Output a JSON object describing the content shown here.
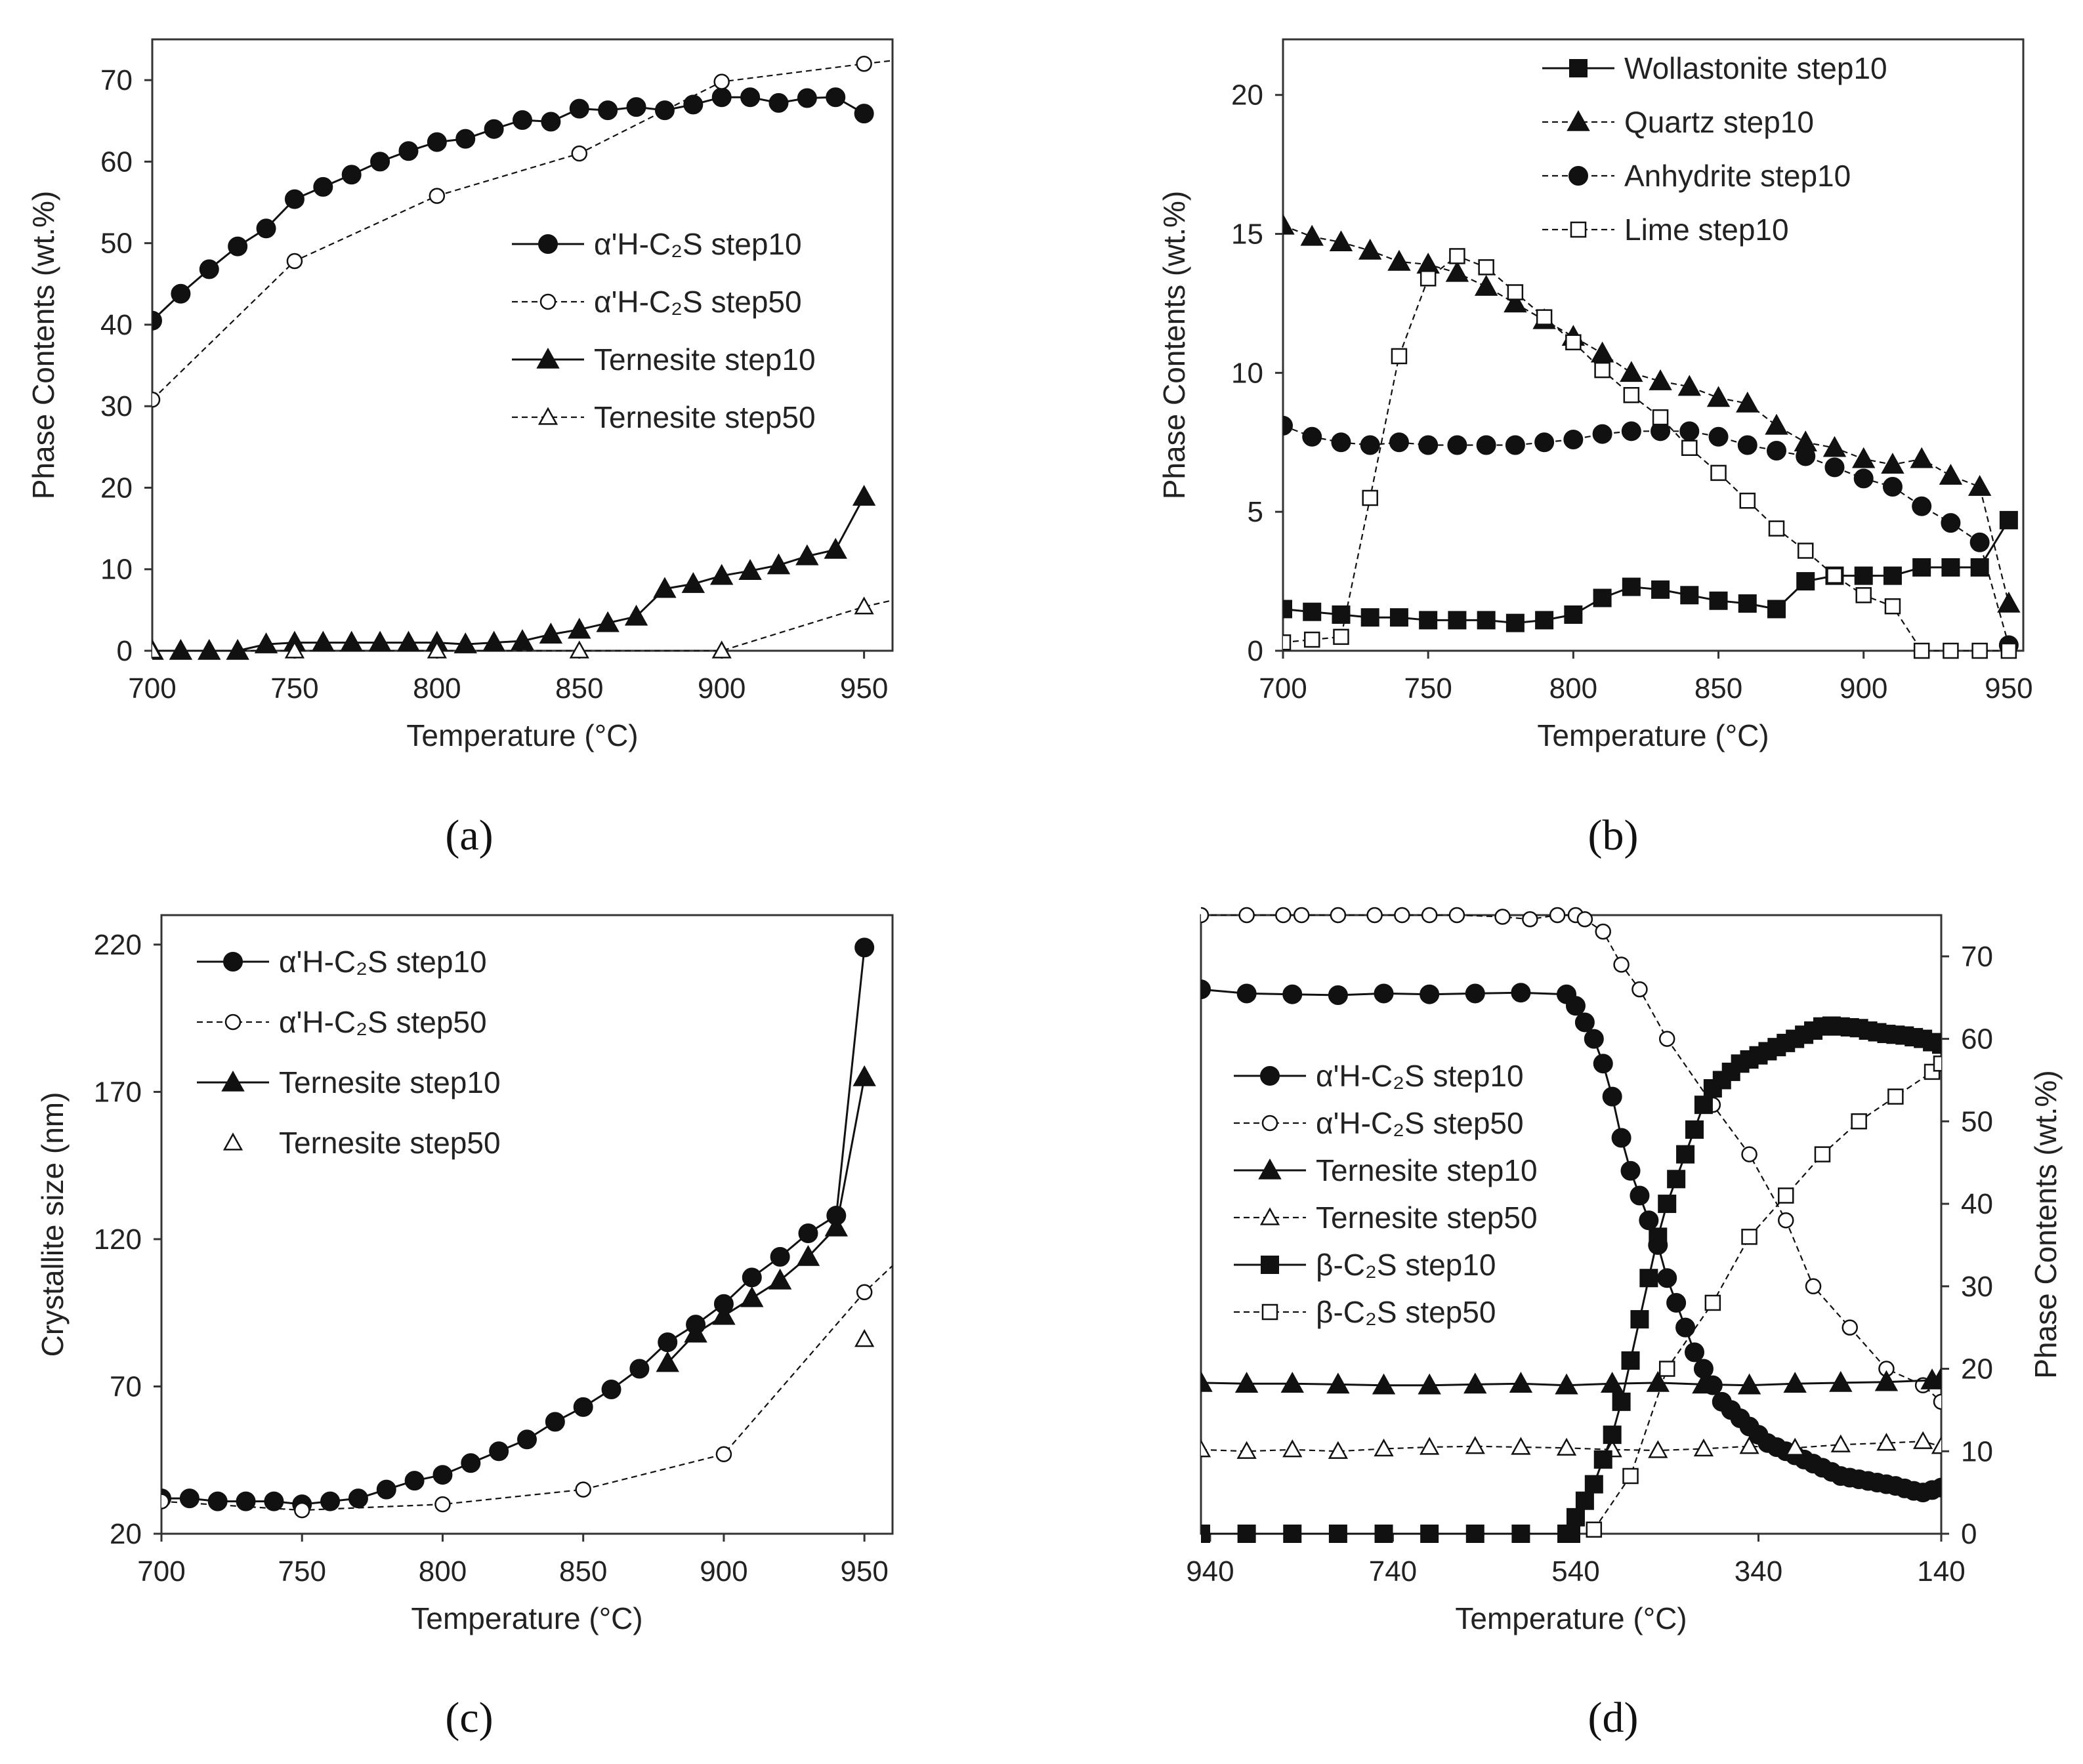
{
  "colors": {
    "ink": "#111111",
    "axis": "#333333",
    "background": "#ffffff"
  },
  "chart_data": [
    {
      "id": "a",
      "panel_label": "(a)",
      "type": "line",
      "xlabel": "Temperature (°C)",
      "ylabel": "Phase Contents (wt.%)",
      "xlim": [
        700,
        960
      ],
      "ylim": [
        0,
        75
      ],
      "xticks": [
        700,
        750,
        800,
        850,
        900,
        950
      ],
      "yticks": [
        0,
        10,
        20,
        30,
        40,
        50,
        60,
        70
      ],
      "legend_position": "center-right",
      "series": [
        {
          "name": "α'H-C₂S step10",
          "marker": "circle",
          "filled": true,
          "dash": false,
          "x": [
            700,
            710,
            720,
            730,
            740,
            750,
            760,
            770,
            780,
            790,
            800,
            810,
            820,
            830,
            840,
            850,
            860,
            870,
            880,
            890,
            900,
            910,
            920,
            930,
            940,
            950
          ],
          "y": [
            40.5,
            43.8,
            46.8,
            49.6,
            51.8,
            55.4,
            56.9,
            58.4,
            60.0,
            61.3,
            62.4,
            62.8,
            64.0,
            65.1,
            64.9,
            66.5,
            66.3,
            66.7,
            66.3,
            67.0,
            67.9,
            67.9,
            67.2,
            67.8,
            67.9,
            65.9
          ]
        },
        {
          "name": "α'H-C₂S step50",
          "marker": "circle",
          "filled": false,
          "dash": true,
          "x": [
            700,
            750,
            800,
            850,
            900,
            950,
            960
          ],
          "y": [
            30.8,
            47.8,
            55.8,
            61.0,
            69.8,
            72.0,
            72.4
          ],
          "marker_count": 6
        },
        {
          "name": "Ternesite step10",
          "marker": "triangle",
          "filled": true,
          "dash": false,
          "x": [
            700,
            710,
            720,
            730,
            740,
            750,
            760,
            770,
            780,
            790,
            800,
            810,
            820,
            830,
            840,
            850,
            860,
            870,
            880,
            890,
            900,
            910,
            920,
            930,
            940,
            950
          ],
          "y": [
            0,
            0,
            0,
            0,
            0.8,
            1.0,
            1.0,
            1.0,
            1.0,
            1.0,
            1.0,
            0.8,
            1.0,
            1.2,
            2.0,
            2.6,
            3.4,
            4.2,
            7.6,
            8.2,
            9.2,
            9.8,
            10.5,
            11.6,
            12.4,
            18.9
          ]
        },
        {
          "name": "Ternesite step50",
          "marker": "triangle",
          "filled": false,
          "dash": true,
          "x": [
            700,
            750,
            800,
            850,
            900,
            950,
            960
          ],
          "y": [
            0,
            0,
            0,
            0,
            0,
            5.4,
            6.2
          ],
          "marker_count": 6
        }
      ]
    },
    {
      "id": "b",
      "panel_label": "(b)",
      "type": "line",
      "xlabel": "Temperature (°C)",
      "ylabel": "Phase Contents (wt.%)",
      "xlim": [
        700,
        955
      ],
      "ylim": [
        0,
        22
      ],
      "xticks": [
        700,
        750,
        800,
        850,
        900,
        950
      ],
      "yticks": [
        0,
        5,
        10,
        15,
        20
      ],
      "legend_position": "top-right",
      "series": [
        {
          "name": "Wollastonite step10",
          "marker": "square",
          "filled": true,
          "dash": false,
          "x": [
            700,
            710,
            720,
            730,
            740,
            750,
            760,
            770,
            780,
            790,
            800,
            810,
            820,
            830,
            840,
            850,
            860,
            870,
            880,
            890,
            900,
            910,
            920,
            930,
            940,
            950
          ],
          "y": [
            1.5,
            1.4,
            1.3,
            1.2,
            1.2,
            1.1,
            1.1,
            1.1,
            1.0,
            1.1,
            1.3,
            1.9,
            2.3,
            2.2,
            2.0,
            1.8,
            1.7,
            1.5,
            2.5,
            2.7,
            2.7,
            2.7,
            3.0,
            3.0,
            3.0,
            4.7
          ]
        },
        {
          "name": "Quartz step10",
          "marker": "triangle",
          "filled": true,
          "dash": true,
          "x": [
            700,
            710,
            720,
            730,
            740,
            750,
            760,
            770,
            780,
            790,
            800,
            810,
            820,
            830,
            840,
            850,
            860,
            870,
            880,
            890,
            900,
            910,
            920,
            930,
            940,
            950
          ],
          "y": [
            15.3,
            14.9,
            14.7,
            14.4,
            14.0,
            13.9,
            13.6,
            13.1,
            12.5,
            11.9,
            11.3,
            10.7,
            10.0,
            9.7,
            9.5,
            9.1,
            8.9,
            8.1,
            7.5,
            7.3,
            6.9,
            6.7,
            6.9,
            6.3,
            5.9,
            1.7
          ]
        },
        {
          "name": "Anhydrite step10",
          "marker": "circle",
          "filled": true,
          "dash": true,
          "x": [
            700,
            710,
            720,
            730,
            740,
            750,
            760,
            770,
            780,
            790,
            800,
            810,
            820,
            830,
            840,
            850,
            860,
            870,
            880,
            890,
            900,
            910,
            920,
            930,
            940,
            950
          ],
          "y": [
            8.1,
            7.7,
            7.5,
            7.4,
            7.5,
            7.4,
            7.4,
            7.4,
            7.4,
            7.5,
            7.6,
            7.8,
            7.9,
            7.9,
            7.9,
            7.7,
            7.4,
            7.2,
            7.0,
            6.6,
            6.2,
            5.9,
            5.2,
            4.6,
            3.9,
            0.2
          ]
        },
        {
          "name": "Lime step10",
          "marker": "square",
          "filled": false,
          "dash": true,
          "x": [
            700,
            710,
            720,
            730,
            740,
            750,
            760,
            770,
            780,
            790,
            800,
            810,
            820,
            830,
            840,
            850,
            860,
            870,
            880,
            890,
            900,
            910,
            920,
            930,
            940,
            950
          ],
          "y": [
            0.3,
            0.4,
            0.5,
            5.5,
            10.6,
            13.4,
            14.2,
            13.8,
            12.9,
            12.0,
            11.1,
            10.1,
            9.2,
            8.4,
            7.3,
            6.4,
            5.4,
            4.4,
            3.6,
            2.7,
            2.0,
            1.6,
            0,
            0,
            0,
            0
          ]
        }
      ]
    },
    {
      "id": "c",
      "panel_label": "(c)",
      "type": "line",
      "xlabel": "Temperature (°C)",
      "ylabel": "Crystallite size (nm)",
      "xlim": [
        700,
        960
      ],
      "ylim": [
        20,
        230
      ],
      "xticks": [
        700,
        750,
        800,
        850,
        900,
        950
      ],
      "yticks": [
        20,
        70,
        120,
        170,
        220
      ],
      "legend_position": "top-left",
      "series": [
        {
          "name": "α'H-C₂S step10",
          "marker": "circle",
          "filled": true,
          "dash": false,
          "x": [
            700,
            710,
            720,
            730,
            740,
            750,
            760,
            770,
            780,
            790,
            800,
            810,
            820,
            830,
            840,
            850,
            860,
            870,
            880,
            890,
            900,
            910,
            920,
            930,
            940,
            950
          ],
          "y": [
            32,
            32,
            31,
            31,
            31,
            30,
            31,
            32,
            35,
            38,
            40,
            44,
            48,
            52,
            58,
            63,
            69,
            76,
            85,
            91,
            98,
            107,
            114,
            122,
            128,
            219
          ]
        },
        {
          "name": "α'H-C₂S step50",
          "marker": "circle",
          "filled": false,
          "dash": true,
          "x": [
            700,
            750,
            800,
            850,
            900,
            950,
            960
          ],
          "y": [
            31,
            28,
            30,
            35,
            47,
            102,
            111
          ],
          "marker_count": 6
        },
        {
          "name": "Ternesite step10",
          "marker": "triangle",
          "filled": true,
          "dash": false,
          "x": [
            880,
            890,
            900,
            910,
            920,
            930,
            940,
            950
          ],
          "y": [
            78,
            88,
            94,
            100,
            106,
            114,
            124,
            175
          ]
        },
        {
          "name": "Ternesite step50",
          "marker": "triangle",
          "filled": false,
          "dash": false,
          "no_line": true,
          "x": [
            950
          ],
          "y": [
            86
          ]
        }
      ]
    },
    {
      "id": "d",
      "panel_label": "(d)",
      "type": "line",
      "xlabel": "Temperature (°C)",
      "ylabel": "Phase Contents (wt.%)",
      "x_reversed": true,
      "xlim": [
        950,
        140
      ],
      "ylim": [
        0,
        75
      ],
      "xticks": [
        940,
        740,
        540,
        340,
        140
      ],
      "yticks": [
        0,
        10,
        20,
        30,
        40,
        50,
        60,
        70
      ],
      "legend_position": "center-left",
      "series": [
        {
          "name": "α'H-C₂S step10",
          "marker": "circle",
          "filled": true,
          "dash": false,
          "x": [
            950,
            900,
            850,
            800,
            750,
            700,
            650,
            600,
            550,
            540,
            530,
            520,
            510,
            500,
            490,
            480,
            470,
            460,
            450,
            440,
            430,
            420,
            410,
            400,
            390,
            380,
            370,
            360,
            350,
            340,
            330,
            320,
            310,
            300,
            290,
            280,
            270,
            260,
            250,
            240,
            230,
            220,
            210,
            200,
            190,
            180,
            170,
            160,
            150,
            140
          ],
          "y": [
            66,
            65.5,
            65.4,
            65.3,
            65.5,
            65.4,
            65.5,
            65.6,
            65.4,
            64,
            62,
            60,
            57,
            53,
            48,
            44,
            41,
            38,
            35,
            31,
            28,
            25,
            22,
            20,
            18,
            16,
            15,
            14,
            13,
            12,
            11,
            10.5,
            10,
            9.5,
            9,
            8.5,
            8,
            7.5,
            7,
            6.8,
            6.6,
            6.4,
            6.2,
            6,
            5.8,
            5.5,
            5.2,
            5,
            5.3,
            5.6
          ]
        },
        {
          "name": "α'H-C₂S step50",
          "marker": "circle",
          "filled": false,
          "dash": true,
          "x": [
            950,
            900,
            860,
            840,
            800,
            760,
            730,
            700,
            670,
            620,
            590,
            560,
            540,
            530,
            510,
            490,
            470,
            440,
            390,
            350,
            310,
            280,
            240,
            200,
            160,
            140
          ],
          "y": [
            75,
            75,
            75,
            75,
            75,
            75,
            75,
            75,
            75,
            74.8,
            74.5,
            75,
            75,
            74.5,
            73,
            69,
            66,
            60,
            52,
            46,
            38,
            30,
            25,
            20,
            18,
            16
          ]
        },
        {
          "name": "Ternesite step10",
          "marker": "triangle",
          "filled": true,
          "dash": false,
          "x": [
            950,
            900,
            850,
            800,
            750,
            700,
            650,
            600,
            550,
            500,
            450,
            400,
            350,
            300,
            250,
            200,
            150,
            140
          ],
          "y": [
            18.3,
            18.2,
            18.2,
            18.1,
            18.0,
            18.0,
            18.1,
            18.2,
            18.0,
            18.2,
            18.3,
            18.1,
            18.0,
            18.2,
            18.3,
            18.4,
            18.6,
            18.8
          ]
        },
        {
          "name": "Ternesite step50",
          "marker": "triangle",
          "filled": false,
          "dash": true,
          "x": [
            950,
            900,
            850,
            800,
            750,
            700,
            650,
            600,
            550,
            500,
            450,
            400,
            350,
            300,
            250,
            200,
            160,
            140
          ],
          "y": [
            10.2,
            10.0,
            10.2,
            10.0,
            10.3,
            10.5,
            10.6,
            10.5,
            10.4,
            10.2,
            10.1,
            10.3,
            10.6,
            10.4,
            10.8,
            11.0,
            11.2,
            10.6
          ]
        },
        {
          "name": "β-C₂S step10",
          "marker": "square",
          "filled": true,
          "dash": false,
          "x": [
            950,
            900,
            850,
            800,
            750,
            700,
            650,
            600,
            550,
            545,
            540,
            530,
            520,
            510,
            500,
            490,
            480,
            470,
            460,
            450,
            440,
            430,
            420,
            410,
            400,
            390,
            380,
            370,
            360,
            350,
            340,
            330,
            320,
            310,
            300,
            290,
            280,
            270,
            260,
            250,
            240,
            230,
            220,
            210,
            200,
            190,
            180,
            170,
            160,
            150,
            140
          ],
          "y": [
            0,
            0,
            0,
            0,
            0,
            0,
            0,
            0,
            0,
            0,
            2,
            4,
            6,
            9,
            12,
            16,
            21,
            26,
            31,
            36,
            40,
            43,
            46,
            49,
            52,
            54,
            55,
            56,
            57,
            57.5,
            58,
            58.5,
            59,
            59.5,
            60,
            60.5,
            61,
            61.5,
            61.6,
            61.5,
            61.4,
            61.3,
            61,
            60.8,
            60.6,
            60.5,
            60.4,
            60.2,
            60,
            59.6,
            59.3
          ]
        },
        {
          "name": "β-C₂S step50",
          "marker": "square",
          "filled": false,
          "dash": true,
          "x": [
            520,
            480,
            440,
            390,
            350,
            310,
            270,
            230,
            190,
            150,
            140
          ],
          "y": [
            0.5,
            7,
            20,
            28,
            36,
            41,
            46,
            50,
            53,
            56,
            57
          ]
        }
      ]
    }
  ]
}
